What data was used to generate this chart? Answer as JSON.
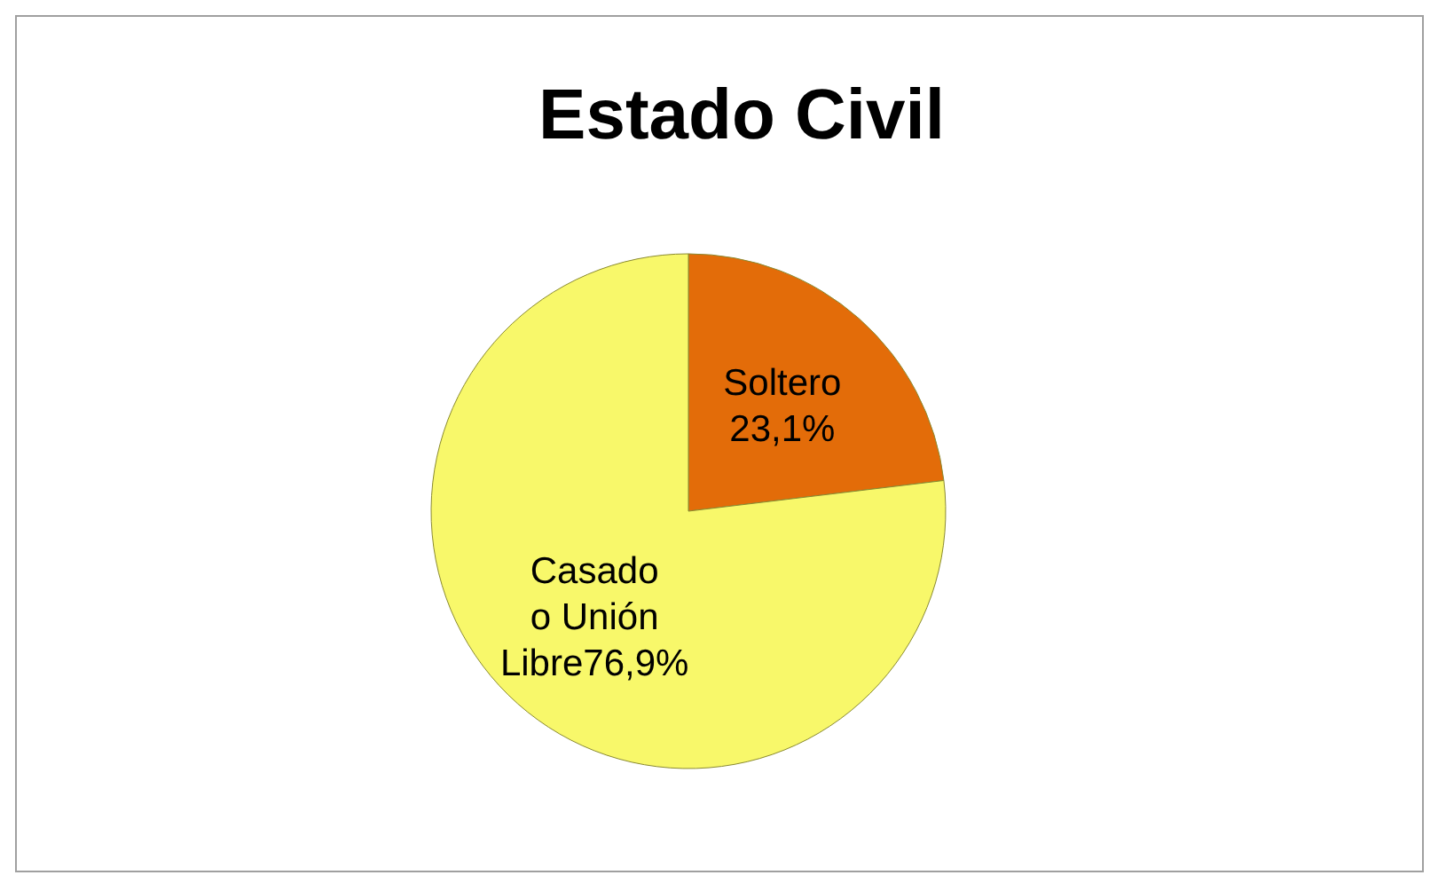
{
  "chart_data": {
    "type": "pie",
    "title": "Estado Civil",
    "categories": [
      "Soltero",
      "Casado o Unión Libre"
    ],
    "values": [
      23.1,
      76.9
    ],
    "value_labels": [
      "23,1%",
      "76,9%"
    ],
    "colors": [
      "#e36c09",
      "#f8f86a"
    ]
  }
}
